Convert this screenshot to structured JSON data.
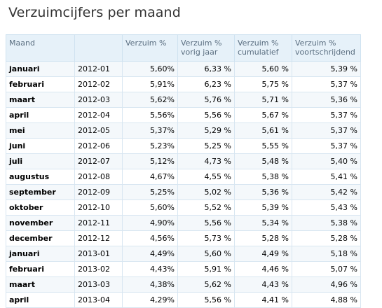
{
  "title": "Verzuimcijfers per maand",
  "headers": [
    "Maand",
    "",
    "Verzuim %",
    "Verzuim % vorig jaar",
    "Verzuim % cumulatief",
    "Verzuim % voortschrijdend"
  ],
  "rows": [
    {
      "maand": "januari",
      "periode": "2012-01",
      "verzuim": "5,60%",
      "vorig": "6,33 %",
      "cumulatief": "5,60 %",
      "voortschrijdend": "5,39 %"
    },
    {
      "maand": "februari",
      "periode": "2012-02",
      "verzuim": "5,91%",
      "vorig": "6,23 %",
      "cumulatief": "5,75 %",
      "voortschrijdend": "5,37 %"
    },
    {
      "maand": "maart",
      "periode": "2012-03",
      "verzuim": "5,62%",
      "vorig": "5,76 %",
      "cumulatief": "5,71 %",
      "voortschrijdend": "5,36 %"
    },
    {
      "maand": "april",
      "periode": "2012-04",
      "verzuim": "5,56%",
      "vorig": "5,56 %",
      "cumulatief": "5,67 %",
      "voortschrijdend": "5,37 %"
    },
    {
      "maand": "mei",
      "periode": "2012-05",
      "verzuim": "5,37%",
      "vorig": "5,29 %",
      "cumulatief": "5,61 %",
      "voortschrijdend": "5,37 %"
    },
    {
      "maand": "juni",
      "periode": "2012-06",
      "verzuim": "5,23%",
      "vorig": "5,25 %",
      "cumulatief": "5,55 %",
      "voortschrijdend": "5,37 %"
    },
    {
      "maand": "juli",
      "periode": "2012-07",
      "verzuim": "5,12%",
      "vorig": "4,73 %",
      "cumulatief": "5,48 %",
      "voortschrijdend": "5,40 %"
    },
    {
      "maand": "augustus",
      "periode": "2012-08",
      "verzuim": "4,67%",
      "vorig": "4,55 %",
      "cumulatief": "5,38 %",
      "voortschrijdend": "5,41 %"
    },
    {
      "maand": "september",
      "periode": "2012-09",
      "verzuim": "5,25%",
      "vorig": "5,02 %",
      "cumulatief": "5,36 %",
      "voortschrijdend": "5,42 %"
    },
    {
      "maand": "oktober",
      "periode": "2012-10",
      "verzuim": "5,60%",
      "vorig": "5,52 %",
      "cumulatief": "5,39 %",
      "voortschrijdend": "5,43 %"
    },
    {
      "maand": "november",
      "periode": "2012-11",
      "verzuim": "4,90%",
      "vorig": "5,56 %",
      "cumulatief": "5,34 %",
      "voortschrijdend": "5,38 %"
    },
    {
      "maand": "december",
      "periode": "2012-12",
      "verzuim": "4,56%",
      "vorig": "5,73 %",
      "cumulatief": "5,28 %",
      "voortschrijdend": "5,28 %"
    },
    {
      "maand": "januari",
      "periode": "2013-01",
      "verzuim": "4,49%",
      "vorig": "5,60 %",
      "cumulatief": "4,49 %",
      "voortschrijdend": "5,18 %"
    },
    {
      "maand": "februari",
      "periode": "2013-02",
      "verzuim": "4,43%",
      "vorig": "5,91 %",
      "cumulatief": "4,46 %",
      "voortschrijdend": "5,07 %"
    },
    {
      "maand": "maart",
      "periode": "2013-03",
      "verzuim": "4,38%",
      "vorig": "5,62 %",
      "cumulatief": "4,43 %",
      "voortschrijdend": "4,96 %"
    },
    {
      "maand": "april",
      "periode": "2013-04",
      "verzuim": "4,29%",
      "vorig": "5,56 %",
      "cumulatief": "4,41 %",
      "voortschrijdend": "4,88 %"
    }
  ]
}
